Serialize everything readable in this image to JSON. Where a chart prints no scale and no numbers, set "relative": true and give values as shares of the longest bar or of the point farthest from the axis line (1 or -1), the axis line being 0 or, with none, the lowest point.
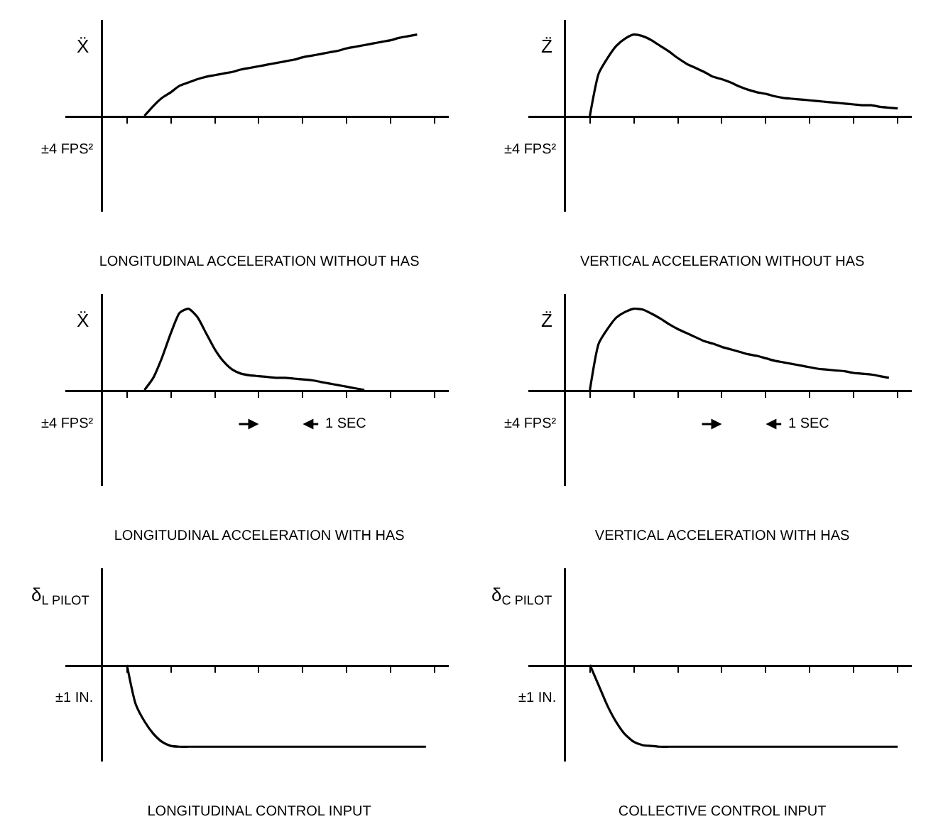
{
  "chart_data": [
    {
      "type": "line",
      "relative": true,
      "title": "LONGITUDINAL ACCELERATION WITHOUT HAS",
      "ylabel": "Ẍ",
      "annotations": [
        "±4 FPS²"
      ],
      "categories": [
        null,
        null,
        null,
        null,
        null,
        null,
        null,
        null,
        null,
        null,
        null,
        null,
        null,
        null,
        null,
        null,
        null,
        null,
        null,
        null,
        null,
        null,
        null,
        null,
        null,
        null,
        null,
        null,
        null,
        null,
        null,
        null,
        null,
        null,
        null,
        null,
        null,
        null,
        null,
        null,
        null
      ],
      "series": [
        {
          "color": "#000000",
          "values": [
            null,
            null,
            null,
            null,
            null,
            0,
            0.12,
            0.22,
            0.29,
            0.37,
            0.41,
            0.45,
            0.48,
            0.5,
            0.52,
            0.54,
            0.57,
            0.59,
            0.61,
            0.63,
            0.65,
            0.67,
            0.69,
            0.72,
            0.74,
            0.76,
            0.78,
            0.8,
            0.83,
            0.85,
            0.87,
            0.89,
            0.91,
            0.93,
            0.96,
            0.98,
            1.0,
            null,
            null,
            null,
            null
          ]
        }
      ]
    },
    {
      "type": "line",
      "relative": true,
      "title": "VERTICAL ACCELERATION WITHOUT HAS",
      "ylabel": "Z̈",
      "annotations": [
        "±4 FPS²"
      ],
      "categories": [
        null,
        null,
        null,
        null,
        null,
        null,
        null,
        null,
        null,
        null,
        null,
        null,
        null,
        null,
        null,
        null,
        null,
        null,
        null,
        null,
        null,
        null,
        null,
        null,
        null,
        null,
        null,
        null,
        null,
        null,
        null,
        null,
        null,
        null,
        null,
        null,
        null,
        null,
        null,
        null,
        null
      ],
      "series": [
        {
          "color": "#000000",
          "values": [
            null,
            null,
            null,
            0,
            0.52,
            0.71,
            0.86,
            0.95,
            1,
            0.98,
            0.93,
            0.86,
            0.79,
            0.71,
            0.64,
            0.59,
            0.54,
            0.48,
            0.45,
            0.41,
            0.36,
            0.32,
            0.29,
            0.27,
            0.24,
            0.22,
            0.21,
            0.2,
            0.19,
            0.18,
            0.17,
            0.16,
            0.15,
            0.14,
            0.13,
            0.13,
            0.11,
            0.1,
            0.09,
            null,
            null
          ]
        }
      ]
    },
    {
      "type": "line",
      "relative": true,
      "title": "LONGITUDINAL ACCELERATION WITH HAS",
      "ylabel": "Ẍ",
      "annotations": [
        "±4 FPS²",
        "1 SEC"
      ],
      "categories": [
        null,
        null,
        null,
        null,
        null,
        null,
        null,
        null,
        null,
        null,
        null,
        null,
        null,
        null,
        null,
        null,
        null,
        null,
        null,
        null,
        null,
        null,
        null,
        null,
        null,
        null,
        null,
        null,
        null,
        null,
        null,
        null,
        null,
        null,
        null,
        null,
        null,
        null,
        null,
        null,
        null
      ],
      "series": [
        {
          "color": "#000000",
          "values": [
            null,
            null,
            null,
            null,
            null,
            0,
            0.15,
            0.4,
            0.7,
            0.95,
            1,
            0.9,
            0.7,
            0.5,
            0.35,
            0.25,
            0.2,
            0.18,
            0.17,
            0.16,
            0.15,
            0.15,
            0.14,
            0.13,
            0.12,
            0.1,
            0.08,
            0.06,
            0.04,
            0.02,
            0,
            null,
            null,
            null,
            null,
            null,
            null,
            null,
            null,
            null,
            null
          ]
        }
      ]
    },
    {
      "type": "line",
      "relative": true,
      "title": "VERTICAL ACCELERATION WITH HAS",
      "ylabel": "Z̈",
      "annotations": [
        "±4 FPS²",
        "1 SEC"
      ],
      "categories": [
        null,
        null,
        null,
        null,
        null,
        null,
        null,
        null,
        null,
        null,
        null,
        null,
        null,
        null,
        null,
        null,
        null,
        null,
        null,
        null,
        null,
        null,
        null,
        null,
        null,
        null,
        null,
        null,
        null,
        null,
        null,
        null,
        null,
        null,
        null,
        null,
        null,
        null,
        null,
        null,
        null
      ],
      "series": [
        {
          "color": "#000000",
          "values": [
            null,
            null,
            null,
            0,
            0.57,
            0.75,
            0.89,
            0.96,
            1,
            0.99,
            0.94,
            0.88,
            0.81,
            0.75,
            0.7,
            0.65,
            0.6,
            0.57,
            0.53,
            0.5,
            0.47,
            0.44,
            0.42,
            0.39,
            0.36,
            0.34,
            0.32,
            0.3,
            0.28,
            0.26,
            0.25,
            0.24,
            0.23,
            0.21,
            0.2,
            0.19,
            0.17,
            0.15,
            null,
            null,
            null
          ]
        }
      ]
    },
    {
      "type": "line",
      "relative": true,
      "title": "LONGITUDINAL CONTROL INPUT",
      "ylabel": "δ$_{L PILOT}$",
      "annotations": [
        "±1 IN."
      ],
      "categories": [
        null,
        null,
        null,
        null,
        null,
        null,
        null,
        null,
        null,
        null,
        null,
        null,
        null,
        null,
        null,
        null,
        null,
        null,
        null,
        null,
        null,
        null,
        null,
        null,
        null,
        null,
        null,
        null,
        null,
        null,
        null,
        null,
        null,
        null,
        null,
        null,
        null,
        null,
        null,
        null,
        null
      ],
      "series": [
        {
          "color": "#000000",
          "values": [
            null,
            null,
            null,
            0,
            -0.48,
            -0.69,
            -0.84,
            -0.94,
            -0.99,
            -1,
            -1,
            -1,
            -1,
            -1,
            -1,
            -1,
            -1,
            -1,
            -1,
            -1,
            -1,
            -1,
            -1,
            -1,
            -1,
            -1,
            -1,
            -1,
            -1,
            -1,
            -1,
            -1,
            -1,
            -1,
            -1,
            -1,
            -1,
            -1,
            null,
            null,
            null
          ]
        }
      ]
    },
    {
      "type": "line",
      "relative": true,
      "title": "COLLECTIVE CONTROL INPUT",
      "ylabel": "δ$_{C PILOT}$",
      "annotations": [
        "±1 IN."
      ],
      "categories": [
        null,
        null,
        null,
        null,
        null,
        null,
        null,
        null,
        null,
        null,
        null,
        null,
        null,
        null,
        null,
        null,
        null,
        null,
        null,
        null,
        null,
        null,
        null,
        null,
        null,
        null,
        null,
        null,
        null,
        null,
        null,
        null,
        null,
        null,
        null,
        null,
        null,
        null,
        null,
        null,
        null
      ],
      "series": [
        {
          "color": "#000000",
          "values": [
            null,
            null,
            null,
            0,
            -0.25,
            -0.5,
            -0.7,
            -0.85,
            -0.94,
            -0.98,
            -0.99,
            -1,
            -1,
            -1,
            -1,
            -1,
            -1,
            -1,
            -1,
            -1,
            -1,
            -1,
            -1,
            -1,
            -1,
            -1,
            -1,
            -1,
            -1,
            -1,
            -1,
            -1,
            -1,
            -1,
            -1,
            -1,
            -1,
            -1,
            -1,
            null,
            null
          ]
        }
      ]
    }
  ]
}
